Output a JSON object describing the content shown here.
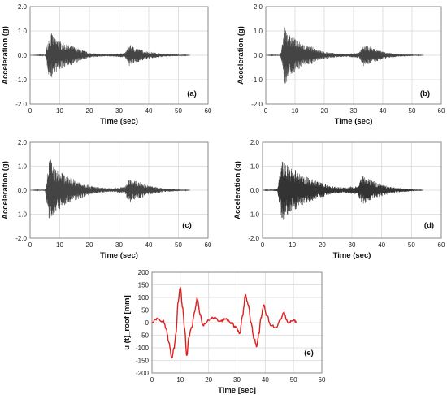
{
  "chart_data": [
    {
      "type": "line",
      "panel_label": "(a)",
      "xlabel": "Time (sec)",
      "ylabel": "Acceleration (g)",
      "xlim": [
        0,
        60
      ],
      "ylim": [
        -2.0,
        2.0
      ],
      "xticks": [
        "0",
        "10",
        "20",
        "30",
        "40",
        "50",
        "60"
      ],
      "yticks": [
        "2.0",
        "1.0",
        "0.0",
        "-1.0",
        "-2.0"
      ],
      "grid": true,
      "legend": "none",
      "color": "#444444",
      "x": [
        0,
        5,
        6,
        6.5,
        7,
        7.5,
        8,
        9,
        10,
        11,
        12,
        14,
        16,
        18,
        20,
        24,
        28,
        32,
        33.5,
        35,
        37,
        40,
        45,
        50,
        54
      ],
      "y": [
        0,
        0.02,
        0.6,
        1.0,
        -0.9,
        0.95,
        -0.7,
        0.7,
        -0.6,
        0.55,
        -0.45,
        0.4,
        -0.3,
        0.2,
        -0.1,
        0.05,
        -0.05,
        0.1,
        0.45,
        -0.35,
        0.25,
        -0.15,
        0.06,
        -0.03,
        0
      ]
    },
    {
      "type": "line",
      "panel_label": "(b)",
      "xlabel": "Time (sec)",
      "ylabel": "Acceleration (g)",
      "xlim": [
        0,
        60
      ],
      "ylim": [
        -2.0,
        2.0
      ],
      "xticks": [
        "0",
        "10",
        "20",
        "30",
        "40",
        "50",
        "60"
      ],
      "yticks": [
        "2.0",
        "1.0",
        "0.0",
        "-1.0",
        "-2.0"
      ],
      "grid": true,
      "legend": "none",
      "color": "#444444",
      "x": [
        0,
        5,
        6,
        6.5,
        7,
        7.5,
        8,
        9,
        10,
        11,
        12,
        14,
        16,
        18,
        20,
        24,
        28,
        32,
        33.5,
        35,
        37,
        40,
        45,
        50,
        54
      ],
      "y": [
        0,
        0.03,
        0.7,
        1.3,
        -1.25,
        1.05,
        -0.85,
        0.8,
        -0.7,
        0.6,
        -0.5,
        0.4,
        -0.35,
        0.25,
        -0.15,
        0.08,
        -0.06,
        0.12,
        0.45,
        -0.4,
        0.3,
        -0.15,
        0.06,
        -0.03,
        0
      ]
    },
    {
      "type": "line",
      "panel_label": "(c)",
      "xlabel": "Time (sec)",
      "ylabel": "Acceleration (g)",
      "xlim": [
        0,
        60
      ],
      "ylim": [
        -2.0,
        2.0
      ],
      "xticks": [
        "0",
        "10",
        "20",
        "30",
        "40",
        "50",
        "60"
      ],
      "yticks": [
        "2.0",
        "1.0",
        "0.0",
        "-1.0",
        "-2.0"
      ],
      "grid": true,
      "legend": "none",
      "color": "#444444",
      "x": [
        0,
        5,
        6,
        6.5,
        7,
        7.5,
        8,
        9,
        10,
        11,
        12,
        14,
        16,
        18,
        20,
        24,
        28,
        32,
        33.5,
        35,
        37,
        40,
        45,
        50,
        54
      ],
      "y": [
        0,
        0.03,
        0.8,
        1.45,
        -1.4,
        1.1,
        -1.0,
        0.85,
        -0.8,
        0.75,
        -0.6,
        0.5,
        -0.4,
        0.3,
        -0.2,
        0.1,
        -0.08,
        0.15,
        0.55,
        -0.4,
        0.35,
        -0.2,
        0.08,
        -0.04,
        0
      ]
    },
    {
      "type": "line",
      "panel_label": "(d)",
      "xlabel": "Time (sec)",
      "ylabel": "Acceleration (g)",
      "xlim": [
        0,
        60
      ],
      "ylim": [
        -2.0,
        2.0
      ],
      "xticks": [
        "0",
        "10",
        "20",
        "30",
        "40",
        "50",
        "60"
      ],
      "yticks": [
        "2.0",
        "1.0",
        "0.0",
        "-1.0",
        "-2.0"
      ],
      "grid": true,
      "legend": "none",
      "color": "#333333",
      "x": [
        0,
        5,
        6,
        6.5,
        7,
        7.5,
        8,
        9,
        10,
        11,
        12,
        14,
        16,
        18,
        20,
        24,
        28,
        32,
        33.5,
        35,
        37,
        40,
        45,
        50,
        54
      ],
      "y": [
        0,
        0.05,
        0.9,
        1.3,
        -1.25,
        1.3,
        -1.1,
        0.95,
        -0.9,
        0.85,
        -0.7,
        0.6,
        -0.5,
        0.4,
        -0.3,
        0.15,
        -0.12,
        0.2,
        0.6,
        -0.5,
        0.4,
        -0.25,
        0.1,
        -0.05,
        0
      ]
    },
    {
      "type": "line",
      "panel_label": "(e)",
      "xlabel": "Time [sec]",
      "ylabel": "u (t)_roof [mm]",
      "xlim": [
        0,
        60
      ],
      "ylim": [
        -200,
        200
      ],
      "xticks": [
        "0",
        "10",
        "20",
        "30",
        "40",
        "50",
        "60"
      ],
      "yticks": [
        "200",
        "150",
        "100",
        "50",
        "0",
        "-50",
        "-100",
        "-150",
        "-200"
      ],
      "grid": true,
      "legend": "none",
      "color": "#e02020",
      "x": [
        0,
        2,
        4,
        5,
        6,
        7,
        7.8,
        8.5,
        9.2,
        10,
        10.8,
        11.5,
        12.3,
        13,
        14,
        15,
        16,
        17,
        18,
        20,
        22,
        24,
        26,
        28,
        29.5,
        31,
        32,
        33,
        34,
        35,
        36,
        37,
        37.8,
        38.5,
        39.5,
        40.5,
        42,
        44,
        45.5,
        46.5,
        48,
        50,
        51
      ],
      "y": [
        0,
        15,
        5,
        -25,
        -80,
        -140,
        -100,
        -40,
        80,
        140,
        60,
        -20,
        -130,
        -60,
        -20,
        40,
        95,
        30,
        -10,
        10,
        20,
        5,
        15,
        0,
        -20,
        -40,
        30,
        110,
        70,
        0,
        -60,
        -95,
        -40,
        20,
        70,
        30,
        -10,
        -20,
        15,
        40,
        0,
        10,
        0
      ]
    }
  ]
}
